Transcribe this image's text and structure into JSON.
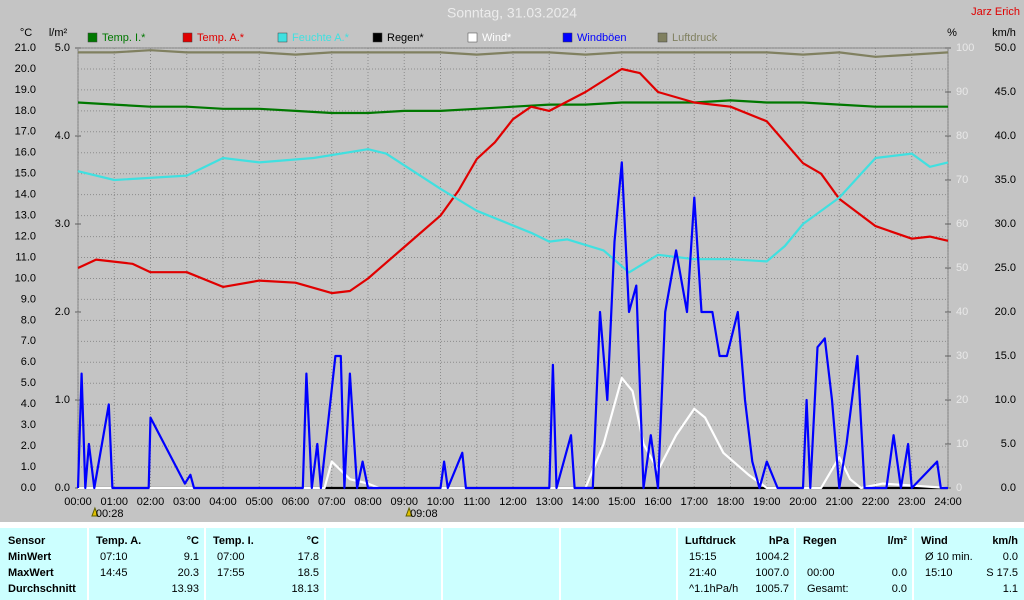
{
  "chart_data": {
    "type": "line",
    "title": "Sonntag, 31.03.2024",
    "author": "Jarz Erich",
    "ylabel": "°C",
    "y4label": "l/m²",
    "y2label": "%",
    "y3label": "km/h",
    "xlim": [
      0,
      24
    ],
    "xticks": [
      {
        "value": 0,
        "label": "00:00"
      },
      {
        "value": 1,
        "label": "01:00"
      },
      {
        "value": 2,
        "label": "02:00"
      },
      {
        "value": 3,
        "label": "03:00"
      },
      {
        "value": 4,
        "label": "04:00"
      },
      {
        "value": 5,
        "label": "05:00"
      },
      {
        "value": 6,
        "label": "06:00"
      },
      {
        "value": 7,
        "label": "07:00"
      },
      {
        "value": 8,
        "label": "08:00"
      },
      {
        "value": 9,
        "label": "09:00"
      },
      {
        "value": 10,
        "label": "10:00"
      },
      {
        "value": 11,
        "label": "11:00"
      },
      {
        "value": 12,
        "label": "12:00"
      },
      {
        "value": 13,
        "label": "13:00"
      },
      {
        "value": 14,
        "label": "14:00"
      },
      {
        "value": 15,
        "label": "15:00"
      },
      {
        "value": 16,
        "label": "16:00"
      },
      {
        "value": 17,
        "label": "17:00"
      },
      {
        "value": 18,
        "label": "18:00"
      },
      {
        "value": 19,
        "label": "19:00"
      },
      {
        "value": 20,
        "label": "20:00"
      },
      {
        "value": 21,
        "label": "21:00"
      },
      {
        "value": 22,
        "label": "22:00"
      },
      {
        "value": 23,
        "label": "23:00"
      },
      {
        "value": 24,
        "label": "24:00"
      }
    ],
    "ylim": [
      0,
      21
    ],
    "yticks": [
      {
        "value": 0,
        "label": "0.0"
      },
      {
        "value": 1,
        "label": "1.0"
      },
      {
        "value": 2,
        "label": "2.0"
      },
      {
        "value": 3,
        "label": "3.0"
      },
      {
        "value": 4,
        "label": "4.0"
      },
      {
        "value": 5,
        "label": "5.0"
      },
      {
        "value": 6,
        "label": "6.0"
      },
      {
        "value": 7,
        "label": "7.0"
      },
      {
        "value": 8,
        "label": "8.0"
      },
      {
        "value": 9,
        "label": "9.0"
      },
      {
        "value": 10,
        "label": "10.0"
      },
      {
        "value": 11,
        "label": "11.0"
      },
      {
        "value": 12,
        "label": "12.0"
      },
      {
        "value": 13,
        "label": "13.0"
      },
      {
        "value": 14,
        "label": "14.0"
      },
      {
        "value": 15,
        "label": "15.0"
      },
      {
        "value": 16,
        "label": "16.0"
      },
      {
        "value": 17,
        "label": "17.0"
      },
      {
        "value": 18,
        "label": "18.0"
      },
      {
        "value": 19,
        "label": "19.0"
      },
      {
        "value": 20,
        "label": "20.0"
      },
      {
        "value": 21,
        "label": "21.0"
      }
    ],
    "y4lim": [
      0,
      5
    ],
    "y4ticks": [
      {
        "value": 0,
        "label": "0.0"
      },
      {
        "value": 1,
        "label": "1.0"
      },
      {
        "value": 2,
        "label": "2.0"
      },
      {
        "value": 3,
        "label": "3.0"
      },
      {
        "value": 4,
        "label": "4.0"
      },
      {
        "value": 5,
        "label": "5.0"
      }
    ],
    "y2lim": [
      0,
      100
    ],
    "y2ticks": [
      0,
      10,
      20,
      30,
      40,
      50,
      60,
      70,
      80,
      90,
      100
    ],
    "y3lim": [
      0,
      50
    ],
    "y3ticks": [
      {
        "value": 0,
        "label": "0.0"
      },
      {
        "value": 5,
        "label": "5.0"
      },
      {
        "value": 10,
        "label": "10.0"
      },
      {
        "value": 15,
        "label": "15.0"
      },
      {
        "value": 20,
        "label": "20.0"
      },
      {
        "value": 25,
        "label": "25.0"
      },
      {
        "value": 30,
        "label": "30.0"
      },
      {
        "value": 35,
        "label": "35.0"
      },
      {
        "value": 40,
        "label": "40.0"
      },
      {
        "value": 45,
        "label": "45.0"
      },
      {
        "value": 50,
        "label": "50.0"
      }
    ],
    "grid": true,
    "annotations": [
      {
        "x": 0.467,
        "label": "00:28"
      },
      {
        "x": 9.133,
        "label": "09:08"
      }
    ],
    "series": [
      {
        "name": "Temp. I.*",
        "color": "#007800",
        "axis": "y",
        "x": [
          0,
          1,
          2,
          3,
          4,
          5,
          6,
          7,
          8,
          9,
          10,
          11,
          12,
          13,
          14,
          15,
          16,
          17,
          18,
          19,
          20,
          21,
          22,
          23,
          24
        ],
        "values": [
          18.4,
          18.3,
          18.2,
          18.2,
          18.1,
          18.1,
          18.0,
          17.9,
          17.9,
          18.0,
          18.0,
          18.1,
          18.2,
          18.3,
          18.3,
          18.4,
          18.4,
          18.4,
          18.5,
          18.4,
          18.4,
          18.3,
          18.2,
          18.2,
          18.2
        ]
      },
      {
        "name": "Temp. A.*",
        "color": "#e00000",
        "axis": "y",
        "x": [
          0,
          0.5,
          1.5,
          2,
          3,
          4,
          5,
          6,
          7,
          7.5,
          8,
          9,
          10,
          10.5,
          11,
          11.5,
          12,
          12.5,
          13,
          14,
          15,
          15.5,
          16,
          17,
          18,
          19,
          20,
          20.5,
          21,
          22,
          23,
          23.5,
          24
        ],
        "values": [
          10.5,
          10.9,
          10.7,
          10.3,
          10.3,
          9.6,
          9.9,
          9.8,
          9.3,
          9.4,
          10.0,
          11.5,
          13.0,
          14.2,
          15.7,
          16.5,
          17.6,
          18.2,
          18.0,
          18.9,
          20.0,
          19.8,
          18.9,
          18.4,
          18.2,
          17.5,
          15.5,
          15.0,
          13.8,
          12.5,
          11.9,
          12.0,
          11.8
        ]
      },
      {
        "name": "Feuchte A.*",
        "color": "#40e0e0",
        "axis": "y2",
        "x": [
          0,
          1,
          3,
          4,
          5,
          6.5,
          8,
          8.5,
          10,
          11,
          12.5,
          13,
          13.5,
          14.5,
          15.2,
          16,
          17,
          18,
          19,
          19.5,
          20,
          21,
          22,
          23,
          23.5,
          24
        ],
        "values": [
          72,
          70,
          71,
          75,
          74,
          75,
          77,
          76,
          68,
          63,
          58,
          56,
          56.5,
          54,
          49,
          53,
          52,
          52,
          51.5,
          55,
          60,
          66,
          75,
          76,
          73,
          74
        ]
      },
      {
        "name": "Regen*",
        "color": "#000000",
        "axis": "y4",
        "x": [
          0,
          24
        ],
        "values": [
          0,
          0
        ]
      },
      {
        "name": "Wind*",
        "color": "#ffffff",
        "axis": "y3",
        "x": [
          0,
          6.8,
          7,
          7.5,
          8,
          8.3,
          14,
          14.5,
          15,
          15.3,
          15.6,
          16,
          16.5,
          17,
          17.3,
          17.8,
          18.5,
          19,
          20.5,
          21,
          21.3,
          21.6,
          22.2,
          24
        ],
        "values": [
          0,
          0,
          3,
          1,
          0.5,
          0,
          0,
          5,
          12.5,
          11,
          5,
          2,
          6,
          9,
          8,
          4,
          1.5,
          0,
          0,
          3.5,
          1,
          0,
          0.5,
          0
        ]
      },
      {
        "name": "Windböen",
        "color": "#0000ff",
        "axis": "y3",
        "x": [
          0,
          0.1,
          0.2,
          0.3,
          0.45,
          0.85,
          0.95,
          1.95,
          2,
          2.95,
          3.1,
          3.2,
          6.2,
          6.3,
          6.45,
          6.6,
          6.7,
          7.1,
          7.25,
          7.35,
          7.5,
          7.7,
          7.85,
          8,
          10,
          10.1,
          10.2,
          10.6,
          10.7,
          13,
          13.1,
          13.2,
          13.6,
          13.7,
          14.2,
          14.4,
          14.6,
          14.8,
          15,
          15.2,
          15.4,
          15.6,
          15.8,
          16,
          16.2,
          16.5,
          16.8,
          17,
          17.2,
          17.5,
          17.7,
          17.9,
          18.2,
          18.4,
          18.6,
          18.8,
          19,
          19.3,
          20,
          20.1,
          20.2,
          20.4,
          20.6,
          20.8,
          21,
          21.2,
          21.5,
          21.7,
          22.3,
          22.5,
          22.7,
          22.9,
          23,
          23.7,
          23.8,
          24
        ],
        "values": [
          0,
          13,
          0,
          5,
          0,
          9.5,
          0,
          0,
          8,
          0.5,
          1.5,
          0,
          0,
          13,
          0,
          5,
          0,
          15,
          15,
          0,
          13,
          0,
          3,
          0,
          0,
          3,
          0,
          4,
          0,
          0,
          14,
          0,
          6,
          0,
          0,
          20,
          10,
          28,
          37,
          20,
          23,
          0,
          6,
          0,
          20,
          27,
          20,
          33,
          20,
          20,
          15,
          15,
          20,
          10,
          3,
          0,
          3,
          0,
          0,
          10,
          0,
          16,
          17,
          10,
          0,
          5,
          15,
          0,
          0,
          6,
          0,
          5,
          0,
          3,
          0,
          0
        ]
      },
      {
        "name": "Luftdruck",
        "color": "#808060",
        "axis": "y2",
        "x": [
          0,
          1,
          2,
          3,
          4,
          5,
          6,
          7,
          8,
          9,
          10,
          11,
          12,
          13,
          14,
          15,
          16,
          17,
          18,
          19,
          20,
          21,
          22,
          23,
          24
        ],
        "values": [
          99,
          99,
          99.5,
          99,
          99,
          99,
          98.5,
          99,
          99,
          99,
          99,
          98.5,
          99,
          99,
          98.5,
          99,
          99,
          99,
          99,
          99,
          98.5,
          99,
          98,
          98.5,
          99
        ]
      }
    ]
  },
  "stats": [
    {
      "header": [
        "Sensor"
      ],
      "rows": [
        [
          "MinWert"
        ],
        [
          "MaxWert"
        ],
        [
          "Durchschnitt"
        ]
      ]
    },
    {
      "header": [
        "Temp. A.",
        "°C"
      ],
      "rows": [
        [
          "07:10",
          "9.1"
        ],
        [
          "14:45",
          "20.3"
        ],
        [
          null,
          "13.93"
        ]
      ]
    },
    {
      "header": [
        "Temp. I.",
        "°C"
      ],
      "rows": [
        [
          "07:00",
          "17.8"
        ],
        [
          "17:55",
          "18.5"
        ],
        [
          null,
          "18.13"
        ]
      ]
    },
    {
      "header": [
        "Luftdruck",
        "hPa"
      ],
      "rows": [
        [
          "15:15",
          "1004.2"
        ],
        [
          "21:40",
          "1007.0"
        ],
        [
          "^1.1hPa/h",
          "1005.7"
        ]
      ]
    },
    {
      "header": [
        "Regen",
        "l/m²"
      ],
      "rows": [
        [
          null,
          null
        ],
        [
          "00:00",
          "0.0"
        ],
        [
          "Gesamt:",
          "0.0"
        ]
      ]
    },
    {
      "header": [
        "Wind",
        "km/h"
      ],
      "rows": [
        [
          "Ø 10 min.",
          "0.0"
        ],
        [
          "15:10",
          "S 17.5"
        ],
        [
          null,
          "1.1"
        ]
      ]
    }
  ]
}
